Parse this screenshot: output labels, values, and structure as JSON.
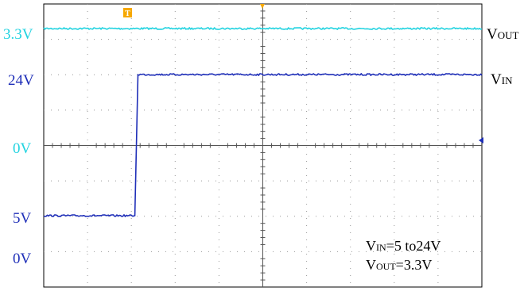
{
  "chart_data": {
    "type": "line",
    "title": "",
    "xlabel": "",
    "ylabel": "",
    "grid": true,
    "x_divisions": 10,
    "y_divisions": 8,
    "trigger_marker": "T",
    "channels": [
      {
        "name": "VOUT",
        "color": "#22d3e0",
        "ground_label": "0V",
        "level_label": "3.3V",
        "points": [
          [
            0,
            3.3
          ],
          [
            10,
            3.3
          ]
        ]
      },
      {
        "name": "VIN",
        "color": "#1f2fb8",
        "ground_label": "0V",
        "level_labels": [
          "5V",
          "24V"
        ],
        "points": [
          [
            0,
            5
          ],
          [
            2.08,
            5
          ],
          [
            2.15,
            24
          ],
          [
            10,
            24
          ]
        ]
      }
    ],
    "series_labels": [
      {
        "main": "V",
        "sub": "OUT"
      },
      {
        "main": "V",
        "sub": "IN"
      }
    ],
    "annotation": {
      "line1": {
        "main": "V",
        "sub": "IN",
        "rest": "=5 to24V"
      },
      "line2": {
        "main": "V",
        "sub": "OUT",
        "rest": "=3.3V"
      }
    }
  }
}
